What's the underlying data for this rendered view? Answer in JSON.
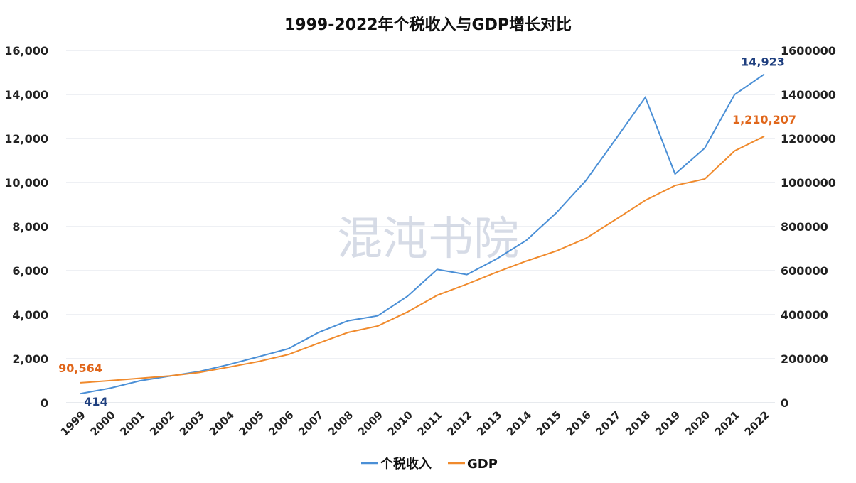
{
  "watermark": "混沌书院",
  "chart_data": {
    "type": "line",
    "title": "1999-2022年个税收入与GDP增长对比",
    "categories": [
      "1999",
      "2000",
      "2001",
      "2002",
      "2003",
      "2004",
      "2005",
      "2006",
      "2007",
      "2008",
      "2009",
      "2010",
      "2011",
      "2012",
      "2013",
      "2014",
      "2015",
      "2016",
      "2017",
      "2018",
      "2019",
      "2020",
      "2021",
      "2022"
    ],
    "y_left": {
      "range": [
        0,
        16000
      ],
      "ticks": [
        "0",
        "2,000",
        "4,000",
        "6,000",
        "8,000",
        "10,000",
        "12,000",
        "14,000",
        "16,000"
      ],
      "tick_values": [
        0,
        2000,
        4000,
        6000,
        8000,
        10000,
        12000,
        14000,
        16000
      ]
    },
    "y_right": {
      "range": [
        0,
        1600000
      ],
      "ticks": [
        "0",
        "200000",
        "400000",
        "600000",
        "800000",
        "1000000",
        "1200000",
        "1400000",
        "1600000"
      ]
    },
    "grid": true,
    "legend_position": "bottom",
    "series": [
      {
        "name": "个税收入",
        "axis": "left",
        "color": "#4a8fd6",
        "values": [
          414,
          660,
          996,
          1211,
          1418,
          1737,
          2094,
          2454,
          3186,
          3722,
          3949,
          4837,
          6054,
          5820,
          6532,
          7377,
          8617,
          10089,
          11966,
          13872,
          10388,
          11568,
          13993,
          14923
        ],
        "labels": {
          "first": "414",
          "last": "14,923"
        },
        "label_color": "#1f3f7f"
      },
      {
        "name": "GDP",
        "axis": "right",
        "color": "#f08a2c",
        "values": [
          90564,
          100280,
          110863,
          121717,
          137422,
          161840,
          187319,
          219438,
          270092,
          319245,
          348518,
          412119,
          487940,
          538580,
          592963,
          643563,
          688858,
          746395,
          832036,
          919281,
          986515,
          1015986,
          1143670,
          1210207
        ],
        "labels": {
          "first": "90,564",
          "last": "1,210,207"
        },
        "label_color": "#e0661a"
      }
    ]
  }
}
